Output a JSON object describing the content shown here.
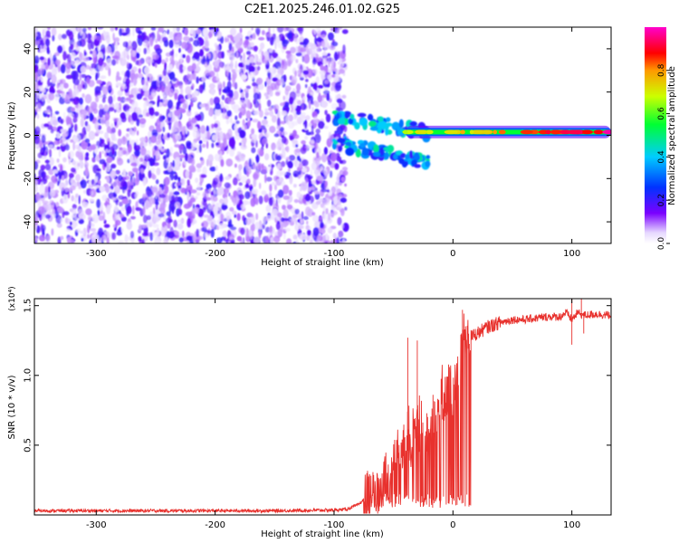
{
  "title": "C2E1.2025.246.01.02.G25",
  "chart_data": [
    {
      "type": "heatmap",
      "xlabel": "Height of straight line (km)",
      "ylabel": "Frequency (Hz)",
      "xlim": [
        -352,
        133
      ],
      "ylim": [
        -50,
        50
      ],
      "xticks": [
        -300,
        -200,
        -100,
        0,
        100
      ],
      "yticks": [
        -40,
        -20,
        0,
        20,
        40
      ],
      "colorbar": {
        "label": "Normalized spectral amplitude",
        "range": [
          0,
          1
        ],
        "ticks": [
          "0.0",
          "0.2",
          "0.4",
          "0.6",
          "0.8"
        ],
        "colormap": "rainbow (white/violet low to magenta high)"
      },
      "features": [
        {
          "x_range": [
            -352,
            -90
          ],
          "y_range": [
            -50,
            50
          ],
          "amplitude": [
            0.0,
            0.15
          ],
          "note": "broadband noise"
        },
        {
          "x_range": [
            -100,
            -20
          ],
          "y_range": [
            -20,
            12
          ],
          "amplitude": [
            0.2,
            0.5
          ],
          "note": "converging features"
        },
        {
          "x_range": [
            -40,
            133
          ],
          "y_center": 1.5,
          "amplitude": [
            0.5,
            1.0
          ],
          "note": "carrier line near 0 Hz"
        }
      ]
    },
    {
      "type": "line",
      "xlabel": "Height of straight line (km)",
      "ylabel": "SNR (10 * v/v)",
      "multiplier": "(x10⁴)",
      "xlim": [
        -352,
        133
      ],
      "ylim": [
        0,
        1.55
      ],
      "xticks": [
        -300,
        -200,
        -100,
        0,
        100
      ],
      "yticks": [
        0.5,
        1.0,
        1.5
      ],
      "series": [
        {
          "color": "#e8312d",
          "x": [
            -352,
            -300,
            -250,
            -200,
            -150,
            -100,
            -90,
            -80,
            -70,
            -60,
            -50,
            -45,
            -40,
            -35,
            -30,
            -25,
            -20,
            -15,
            -10,
            -5,
            0,
            5,
            10,
            20,
            30,
            40,
            50,
            60,
            70,
            80,
            90,
            95,
            100,
            105,
            110,
            120,
            133
          ],
          "values": [
            0.03,
            0.03,
            0.03,
            0.03,
            0.03,
            0.035,
            0.04,
            0.07,
            0.15,
            0.25,
            0.35,
            0.5,
            0.6,
            0.55,
            0.7,
            0.6,
            0.6,
            0.75,
            0.85,
            0.9,
            0.95,
            1.1,
            1.25,
            1.3,
            1.35,
            1.38,
            1.4,
            1.4,
            1.41,
            1.42,
            1.42,
            1.45,
            1.4,
            1.45,
            1.43,
            1.44,
            1.43
          ],
          "peaks": [
            {
              "x": -38,
              "value": 1.27
            },
            {
              "x": -30,
              "value": 1.25
            },
            {
              "x": 8,
              "value": 1.47
            },
            {
              "x": 100,
              "value": 1.57
            },
            {
              "x": 108,
              "value": 1.55
            }
          ],
          "dips": [
            {
              "x": 100,
              "value": 1.22
            },
            {
              "x": 110,
              "value": 1.3
            }
          ]
        }
      ]
    }
  ]
}
